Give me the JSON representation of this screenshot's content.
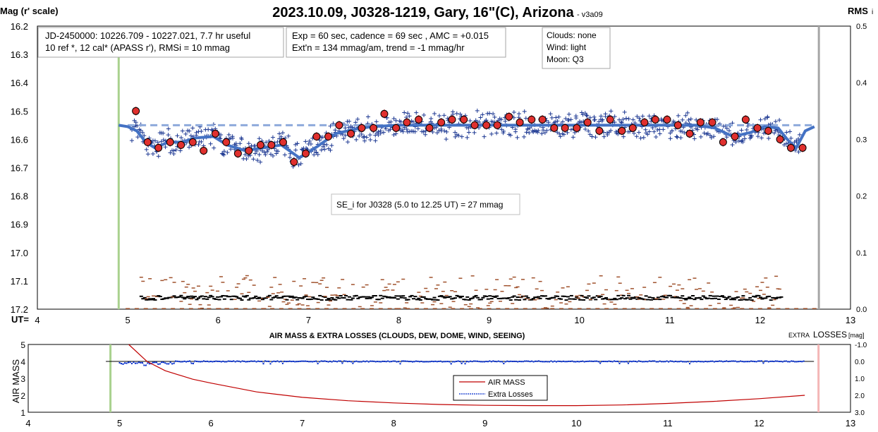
{
  "title": "2023.10.09, J0328-1219, Gary, 16\"(C), Arizona",
  "title_suffix": "- v3a09",
  "left_axis_label": "Mag (r' scale)",
  "right_axis_label_main": "RMS",
  "right_axis_label_sub": "i",
  "ut_label": "UT=",
  "info_box_1": {
    "line1": "JD-2450000: 10226.709 - 10227.021, 7.7 hr useful",
    "line2": "10 ref *, 12 cal*  (APASS r'), RMSi = 10 mmag"
  },
  "info_box_2": {
    "line1": "Exp = 60 sec, cadence = 69 sec , AMC = +0.015",
    "line2": "Ext'n = 134 mmag/am, trend = -1 mmag/hr"
  },
  "info_box_3": {
    "line1": "Clouds: none",
    "line2": "Wind:   light",
    "line3": "Moon:  Q3"
  },
  "se_annotation": "SE_i for J0328 (5.0 to 12.25 UT) = 27 mmag",
  "lower_title": "AIR MASS & EXTRA LOSSES (CLOUDS, DEW, DOME, WIND, SEEING)",
  "lower_left_label": "AIR MASS",
  "lower_right_label_small": "EXTRA",
  "lower_right_label_big": "LOSSES",
  "lower_right_label_unit": "[mag]",
  "colors": {
    "raw_points": "#1f3a93",
    "binned_fill": "#e0302e",
    "fit_line": "#4472c4",
    "mean_dash": "#8eaadb",
    "rms_black": "#000000",
    "rms_brown": "#a0522d",
    "start_line": "#a9d18e",
    "end_line_top": "#a6a6a6",
    "end_line_bottom": "#f4b6b6",
    "airmass": "#c00000",
    "extra_losses": "#002bcc"
  },
  "chart_data": [
    {
      "type": "scatter",
      "panel": "light-curve",
      "x_unit": "UT (hr)",
      "xlim": [
        4,
        13
      ],
      "xticks": [
        "4",
        "5",
        "6",
        "7",
        "8",
        "9",
        "10",
        "11",
        "12",
        "13"
      ],
      "ylabel": "Mag (r' scale)",
      "ylim": [
        16.2,
        17.2
      ],
      "y_inverted": true,
      "yticks": [
        "16.2",
        "16.3",
        "16.4",
        "16.5",
        "16.6",
        "16.7",
        "16.8",
        "16.9",
        "17.0",
        "17.1",
        "17.2"
      ],
      "y2label": "RMS i",
      "y2lim": [
        0.0,
        0.5
      ],
      "y2ticks": [
        "0.0",
        "0.1",
        "0.2",
        "0.3",
        "0.4",
        "0.5"
      ],
      "start_ut": 4.9,
      "end_ut": 12.65,
      "mean_mag": 16.55,
      "binned_series": {
        "x": [
          5.09,
          5.22,
          5.34,
          5.47,
          5.59,
          5.72,
          5.84,
          5.97,
          6.09,
          6.22,
          6.34,
          6.47,
          6.59,
          6.72,
          6.84,
          6.97,
          7.09,
          7.22,
          7.34,
          7.47,
          7.59,
          7.72,
          7.84,
          7.97,
          8.09,
          8.22,
          8.34,
          8.47,
          8.59,
          8.72,
          8.84,
          8.97,
          9.09,
          9.22,
          9.34,
          9.47,
          9.59,
          9.72,
          9.84,
          9.97,
          10.09,
          10.22,
          10.34,
          10.47,
          10.59,
          10.72,
          10.84,
          10.97,
          11.09,
          11.22,
          11.34,
          11.47,
          11.59,
          11.72,
          11.84,
          11.97,
          12.09,
          12.22,
          12.34,
          12.47
        ],
        "y": [
          16.5,
          16.61,
          16.63,
          16.61,
          16.62,
          16.61,
          16.64,
          16.58,
          16.61,
          16.65,
          16.64,
          16.62,
          16.62,
          16.61,
          16.68,
          16.65,
          16.59,
          16.59,
          16.55,
          16.58,
          16.56,
          16.56,
          16.51,
          16.56,
          16.54,
          16.53,
          16.56,
          16.54,
          16.53,
          16.53,
          16.55,
          16.55,
          16.55,
          16.52,
          16.54,
          16.53,
          16.53,
          16.56,
          16.56,
          16.56,
          16.54,
          16.57,
          16.53,
          16.57,
          16.56,
          16.54,
          16.53,
          16.53,
          16.55,
          16.58,
          16.54,
          16.54,
          16.61,
          16.59,
          16.53,
          16.56,
          16.57,
          16.6,
          16.63,
          16.63
        ]
      },
      "fit_curve": {
        "x": [
          4.9,
          5.0,
          5.1,
          5.2,
          5.3,
          5.45,
          5.6,
          5.75,
          5.95,
          6.1,
          6.3,
          6.5,
          6.7,
          6.9,
          7.1,
          7.3,
          7.5,
          7.7,
          8.0,
          8.5,
          9.0,
          9.5,
          10.0,
          10.5,
          11.0,
          11.3,
          11.5,
          11.7,
          11.9,
          12.05,
          12.2,
          12.3,
          12.4,
          12.5,
          12.6
        ],
        "y": [
          16.55,
          16.555,
          16.57,
          16.61,
          16.63,
          16.61,
          16.61,
          16.595,
          16.59,
          16.62,
          16.64,
          16.63,
          16.62,
          16.665,
          16.625,
          16.58,
          16.565,
          16.555,
          16.55,
          16.55,
          16.55,
          16.55,
          16.55,
          16.55,
          16.55,
          16.55,
          16.56,
          16.59,
          16.575,
          16.555,
          16.56,
          16.6,
          16.63,
          16.57,
          16.555
        ]
      },
      "rms_series": {
        "description": "RMS per observation, lower dashes on right axis",
        "typical_black": 0.02,
        "typical_brown": 0.03
      }
    },
    {
      "type": "line",
      "panel": "air-mass",
      "xlim": [
        4,
        13
      ],
      "xticks": [
        "4",
        "5",
        "6",
        "7",
        "8",
        "9",
        "10",
        "11",
        "12",
        "13"
      ],
      "ylabel": "AIR MASS",
      "ylim": [
        1,
        5
      ],
      "yticks": [
        "1",
        "2",
        "3",
        "4",
        "5"
      ],
      "y2label": "EXTRA LOSSES [mag]",
      "y2lim": [
        3.0,
        -1.0
      ],
      "y2ticks": [
        "-1.0",
        "0.0",
        "1.0",
        "2.0",
        "3.0"
      ],
      "series": [
        {
          "name": "AIR MASS",
          "x": [
            5.1,
            5.3,
            5.5,
            5.8,
            6.0,
            6.5,
            7.0,
            7.5,
            8.0,
            8.5,
            9.0,
            9.5,
            10.0,
            10.5,
            11.0,
            11.5,
            12.0,
            12.5
          ],
          "values": [
            5.0,
            4.0,
            3.45,
            2.95,
            2.72,
            2.2,
            1.88,
            1.68,
            1.55,
            1.46,
            1.41,
            1.39,
            1.39,
            1.43,
            1.52,
            1.64,
            1.8,
            2.0
          ]
        },
        {
          "name": "Extra Losses",
          "x": [
            4.9,
            5.2,
            5.5,
            12.5
          ],
          "values": [
            0.0,
            0.1,
            0.05,
            0.0
          ]
        }
      ],
      "legend": "center-right"
    }
  ]
}
